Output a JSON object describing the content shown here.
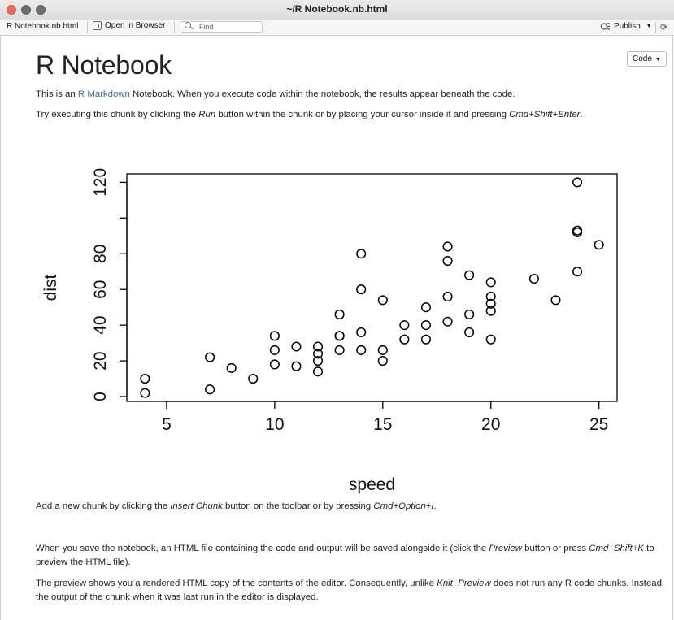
{
  "window": {
    "title": "~/R Notebook.nb.html"
  },
  "toolbar": {
    "file_name": "R Notebook.nb.html",
    "open_label": "Open in Browser",
    "find_placeholder": "Find",
    "publish_label": "Publish"
  },
  "doc": {
    "code_button": "Code",
    "title": "R Notebook",
    "p1": {
      "pre": "This is an ",
      "link": "R Markdown",
      "post": " Notebook. When you execute code within the notebook, the results appear beneath the code."
    },
    "p2": {
      "pre": "Try executing this chunk by clicking the ",
      "em1": "Run",
      "mid": " button within the chunk or by placing your cursor inside it and pressing ",
      "em2": "Cmd+Shift+Enter",
      "post": "."
    },
    "p3": {
      "pre": "Add a new chunk by clicking the ",
      "em1": "Insert Chunk",
      "mid": " button on the toolbar or by pressing ",
      "em2": "Cmd+Option+I",
      "post": "."
    },
    "p4": {
      "pre": "When you save the notebook, an HTML file containing the code and output will be saved alongside it (click the ",
      "em1": "Preview",
      "mid": " button or press ",
      "em2": "Cmd+Shift+K",
      "post": " to preview the HTML file)."
    },
    "p5": {
      "pre": "The preview shows you a rendered HTML copy of the contents of the editor. Consequently, unlike ",
      "em1": "Knit",
      "mid": ", ",
      "em2": "Preview",
      "post": " does not run any R code chunks. Instead, the output of the chunk when it was last run in the editor is displayed."
    }
  },
  "chart_data": {
    "type": "scatter",
    "xlabel": "speed",
    "ylabel": "dist",
    "xlim": [
      4,
      25
    ],
    "ylim": [
      2,
      120
    ],
    "xticks": [
      5,
      10,
      15,
      20,
      25
    ],
    "yticks": [
      0,
      20,
      40,
      60,
      80,
      100,
      120
    ],
    "ytick_labels": [
      "0",
      "20",
      "40",
      "60",
      "80",
      "",
      "120"
    ],
    "grid": false,
    "points": [
      [
        4,
        2
      ],
      [
        4,
        10
      ],
      [
        7,
        4
      ],
      [
        7,
        22
      ],
      [
        8,
        16
      ],
      [
        9,
        10
      ],
      [
        10,
        18
      ],
      [
        10,
        26
      ],
      [
        10,
        34
      ],
      [
        11,
        17
      ],
      [
        11,
        28
      ],
      [
        12,
        14
      ],
      [
        12,
        20
      ],
      [
        12,
        24
      ],
      [
        12,
        28
      ],
      [
        13,
        26
      ],
      [
        13,
        34
      ],
      [
        13,
        34
      ],
      [
        13,
        46
      ],
      [
        14,
        26
      ],
      [
        14,
        36
      ],
      [
        14,
        60
      ],
      [
        14,
        80
      ],
      [
        15,
        20
      ],
      [
        15,
        26
      ],
      [
        15,
        54
      ],
      [
        16,
        32
      ],
      [
        16,
        40
      ],
      [
        17,
        32
      ],
      [
        17,
        40
      ],
      [
        17,
        50
      ],
      [
        18,
        42
      ],
      [
        18,
        56
      ],
      [
        18,
        76
      ],
      [
        18,
        84
      ],
      [
        19,
        36
      ],
      [
        19,
        46
      ],
      [
        19,
        68
      ],
      [
        20,
        32
      ],
      [
        20,
        48
      ],
      [
        20,
        52
      ],
      [
        20,
        56
      ],
      [
        20,
        64
      ],
      [
        22,
        66
      ],
      [
        23,
        54
      ],
      [
        24,
        70
      ],
      [
        24,
        92
      ],
      [
        24,
        93
      ],
      [
        24,
        120
      ],
      [
        25,
        85
      ]
    ]
  }
}
